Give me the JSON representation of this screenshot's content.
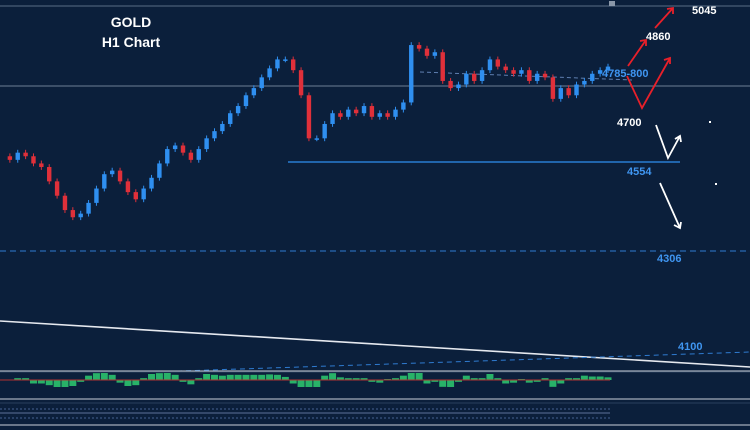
{
  "chart_data": {
    "type": "candlestick",
    "title": "GOLD",
    "subtitle": "H1 Chart",
    "xlabel": "",
    "ylabel": "",
    "colors": {
      "background": "#0b1f3b",
      "bull": "#2f8ff0",
      "bear": "#e0303a",
      "support": "#2f8ff0",
      "bull_arrow": "#e8202a",
      "bear_arrow": "#ffffff",
      "oscillator": "#2ecc71"
    },
    "levels": [
      {
        "label": "5045",
        "style": "target-white"
      },
      {
        "label": "4860",
        "style": "target-white"
      },
      {
        "label": "4785-800",
        "style": "resistance-blue"
      },
      {
        "label": "4700",
        "style": "pivot-white"
      },
      {
        "label": "4554",
        "style": "support-blue"
      },
      {
        "label": "4306",
        "style": "support-blue-dashed"
      },
      {
        "label": "4100",
        "style": "support-blue"
      }
    ],
    "closes": [
      4570,
      4560,
      4580,
      4570,
      4550,
      4540,
      4500,
      4460,
      4420,
      4400,
      4410,
      4440,
      4480,
      4520,
      4530,
      4500,
      4470,
      4450,
      4480,
      4510,
      4550,
      4590,
      4600,
      4580,
      4560,
      4590,
      4620,
      4640,
      4660,
      4690,
      4710,
      4740,
      4760,
      4790,
      4815,
      4840,
      4840,
      4810,
      4740,
      4620,
      4620,
      4660,
      4690,
      4680,
      4700,
      4690,
      4710,
      4680,
      4690,
      4680,
      4700,
      4720,
      4880,
      4870,
      4850,
      4860,
      4780,
      4760,
      4770,
      4800,
      4780,
      4810,
      4840,
      4820,
      4810,
      4800,
      4810,
      4780,
      4800,
      4790,
      4730,
      4760,
      4740,
      4770,
      4780,
      4800,
      4810,
      4820
    ]
  }
}
